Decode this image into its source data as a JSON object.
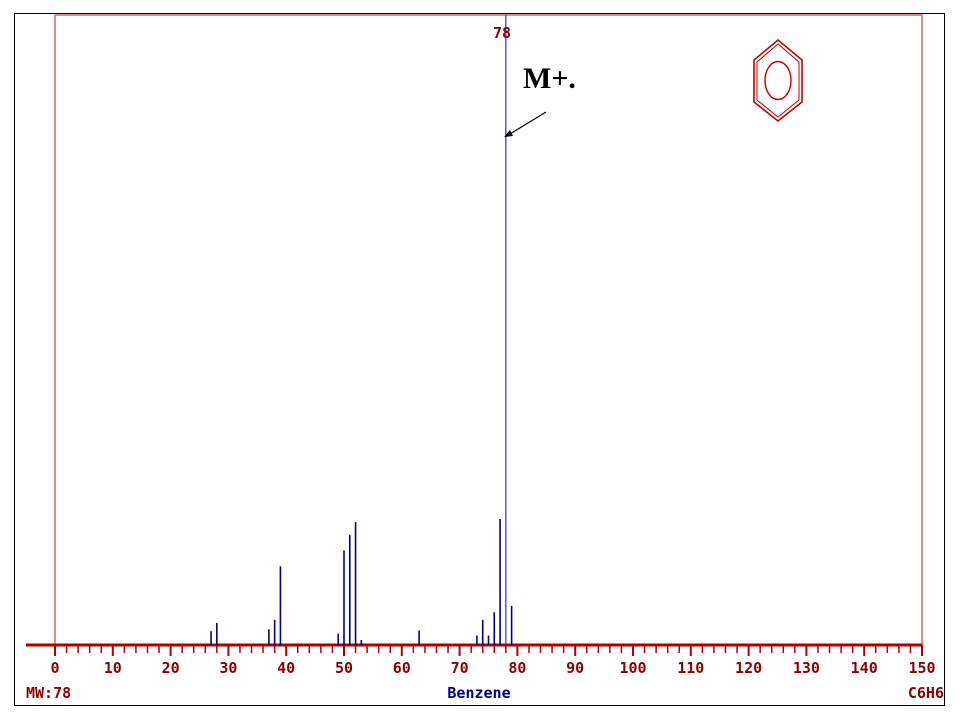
{
  "chart_data": {
    "type": "bar",
    "title": "Benzene",
    "x_label": "",
    "y_label": "",
    "xlim": [
      0,
      150
    ],
    "ylim": [
      0,
      100
    ],
    "x_ticks": [
      0,
      10,
      20,
      30,
      40,
      50,
      60,
      70,
      80,
      90,
      100,
      110,
      120,
      130,
      140,
      150
    ],
    "base_peak_label": "78",
    "peaks": [
      {
        "mz": 27,
        "intensity": 2.2
      },
      {
        "mz": 28,
        "intensity": 3.5
      },
      {
        "mz": 37,
        "intensity": 2.5
      },
      {
        "mz": 38,
        "intensity": 4.0
      },
      {
        "mz": 39,
        "intensity": 12.5
      },
      {
        "mz": 49,
        "intensity": 1.8
      },
      {
        "mz": 50,
        "intensity": 15.0
      },
      {
        "mz": 51,
        "intensity": 17.5
      },
      {
        "mz": 52,
        "intensity": 19.5
      },
      {
        "mz": 53,
        "intensity": 0.8
      },
      {
        "mz": 63,
        "intensity": 2.3
      },
      {
        "mz": 73,
        "intensity": 1.5
      },
      {
        "mz": 74,
        "intensity": 4.0
      },
      {
        "mz": 75,
        "intensity": 1.5
      },
      {
        "mz": 76,
        "intensity": 5.2
      },
      {
        "mz": 77,
        "intensity": 20.0
      },
      {
        "mz": 78,
        "intensity": 100.0
      },
      {
        "mz": 79,
        "intensity": 6.2
      }
    ],
    "molecular_weight_label": "MW:78",
    "formula_label": "C6H6",
    "compound_name": "Benzene",
    "annotation": "M+.",
    "grid": false
  },
  "colors": {
    "frame": "#e06060",
    "axis": "#b00000",
    "peak": "#000080",
    "base_peak": "#3030c0",
    "label_red": "#8b0000",
    "label_blue": "#000080",
    "structure": "#c00000"
  },
  "icons": {
    "structure": "benzene-ring-icon"
  }
}
